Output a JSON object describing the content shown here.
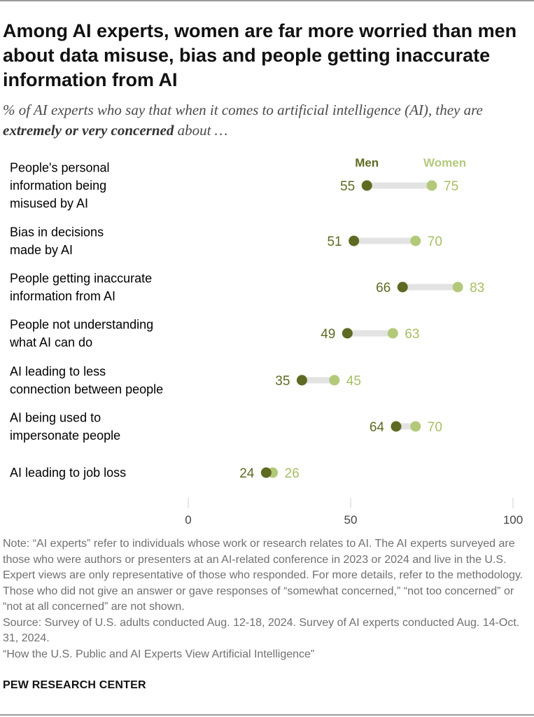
{
  "header": {
    "title": "Among AI experts, women are far more worried than men about data misuse, bias and people getting inaccurate information from AI",
    "subtitle_pre": "% of AI experts who say that when it comes to artificial intelligence (AI), they are ",
    "subtitle_bold": "extremely or very concerned",
    "subtitle_post": " about …"
  },
  "chart_data": {
    "type": "dot-plot",
    "legend": [
      "Men",
      "Women"
    ],
    "colors": {
      "men": "#5e6a22",
      "women": "#b3c97a",
      "connector": "#e3e3e3",
      "tick": "#d0d0d0"
    },
    "xlim": [
      0,
      100
    ],
    "ticks": [
      0,
      50,
      100
    ],
    "categories": [
      {
        "lines": [
          "People's personal",
          "information being",
          "misused by AI"
        ],
        "men": 55,
        "women": 75
      },
      {
        "lines": [
          "Bias in decisions",
          "made by AI"
        ],
        "men": 51,
        "women": 70
      },
      {
        "lines": [
          "People getting inaccurate",
          "information from AI"
        ],
        "men": 66,
        "women": 83
      },
      {
        "lines": [
          "People not understanding",
          "what AI can do"
        ],
        "men": 49,
        "women": 63
      },
      {
        "lines": [
          "AI leading to less",
          "connection between people"
        ],
        "men": 35,
        "women": 45
      },
      {
        "lines": [
          "AI being used to",
          "impersonate people"
        ],
        "men": 64,
        "women": 70
      },
      {
        "lines": [
          "AI leading to job loss"
        ],
        "men": 24,
        "women": 26
      }
    ]
  },
  "notes": {
    "note": "Note: “AI experts” refer to individuals whose work or research relates to AI. The AI experts surveyed are those who were authors or presenters at an AI-related conference in 2023 or 2024 and live in the U.S. Expert views are only representative of those who responded. For more details, refer to the methodology. Those who did not give an answer or gave responses of “somewhat concerned,” “not too concerned” or “not at all concerned” are not shown.",
    "source": "Source: Survey of U.S. adults conducted Aug. 12-18, 2024. Survey of AI experts conducted Aug. 14-Oct. 31, 2024.",
    "report": "“How the U.S. Public and AI Experts View Artificial Intelligence”"
  },
  "footer": {
    "brand": "PEW RESEARCH CENTER"
  }
}
